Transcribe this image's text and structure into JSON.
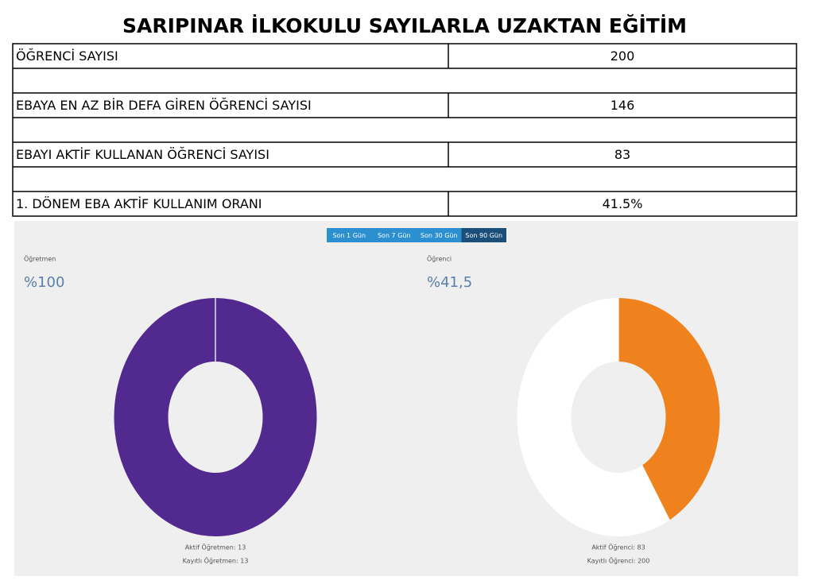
{
  "header": {
    "title": "SARIPINAR İLKOKULU SAYILARLA UZAKTAN EĞİTİM"
  },
  "table": {
    "rows": [
      [
        "ÖĞRENCİ SAYISI",
        200
      ],
      [
        "EBAYA EN AZ BİR DEFA GİREN ÖĞRENCİ SAYISI",
        146
      ],
      [
        "EBAYI AKTİF KULLANAN ÖĞRENCİ SAYISI",
        83
      ],
      [
        "1. DÖNEM EBA AKTİF KULLANIM ORANI",
        "41.5%"
      ]
    ]
  },
  "tabs": {
    "items": [
      "Son 1 Gün",
      "Son 7 Gün",
      "Son 30 Gün",
      "Son 90 Gün"
    ],
    "active": 3
  },
  "chart_data": [
    {
      "type": "donut",
      "title": "Öğretmen",
      "headline": "%100",
      "values": [
        13,
        13
      ],
      "value_labels": [
        "Aktif Öğretmen: 13",
        "Kayıtlı Öğretmen: 13"
      ],
      "color": "#522a8f"
    },
    {
      "type": "donut",
      "title": "Öğrenci",
      "headline": "%41,5",
      "values": [
        83,
        200
      ],
      "value_labels": [
        "Aktif Öğrenci: 83",
        "Kayıtlı Öğrenci: 200"
      ],
      "color": "#f0821e"
    }
  ]
}
